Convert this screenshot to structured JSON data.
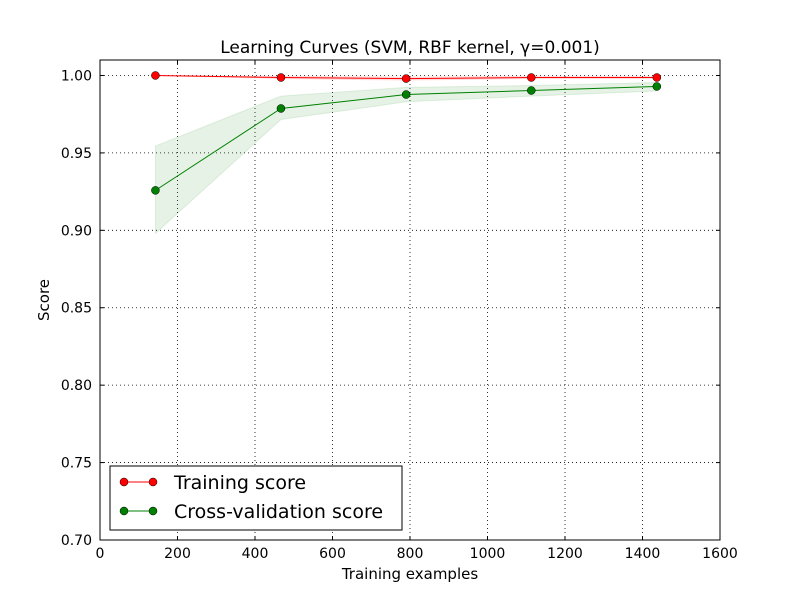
{
  "chart_data": {
    "type": "line",
    "title": "Learning Curves (SVM, RBF kernel, γ=0.001)",
    "xlabel": "Training examples",
    "ylabel": "Score",
    "xlim": [
      0,
      1600
    ],
    "ylim": [
      0.7,
      1.01
    ],
    "xticks": [
      0,
      200,
      400,
      600,
      800,
      1000,
      1200,
      1400,
      1600
    ],
    "yticks": [
      0.7,
      0.75,
      0.8,
      0.85,
      0.9,
      0.95,
      1.0
    ],
    "ytick_labels": [
      "0.70",
      "0.75",
      "0.80",
      "0.85",
      "0.90",
      "0.95",
      "1.00"
    ],
    "grid": true,
    "legend_position": "lower-left",
    "x": [
      143,
      467,
      790,
      1113,
      1437
    ],
    "series": [
      {
        "name": "Training score",
        "color": "#ff0000",
        "values": [
          1.0,
          0.9987,
          0.998,
          0.9987,
          0.9987
        ],
        "band_low": [
          1.0,
          0.998,
          0.997,
          0.998,
          0.998
        ],
        "band_high": [
          1.0,
          0.9994,
          0.999,
          0.9994,
          0.9994
        ]
      },
      {
        "name": "Cross-validation score",
        "color": "#008000",
        "values": [
          0.9258,
          0.9787,
          0.9877,
          0.9903,
          0.9929
        ],
        "band_low": [
          0.898,
          0.9716,
          0.983,
          0.9867,
          0.99
        ],
        "band_high": [
          0.9544,
          0.9867,
          0.9923,
          0.9935,
          0.9955
        ]
      }
    ]
  }
}
